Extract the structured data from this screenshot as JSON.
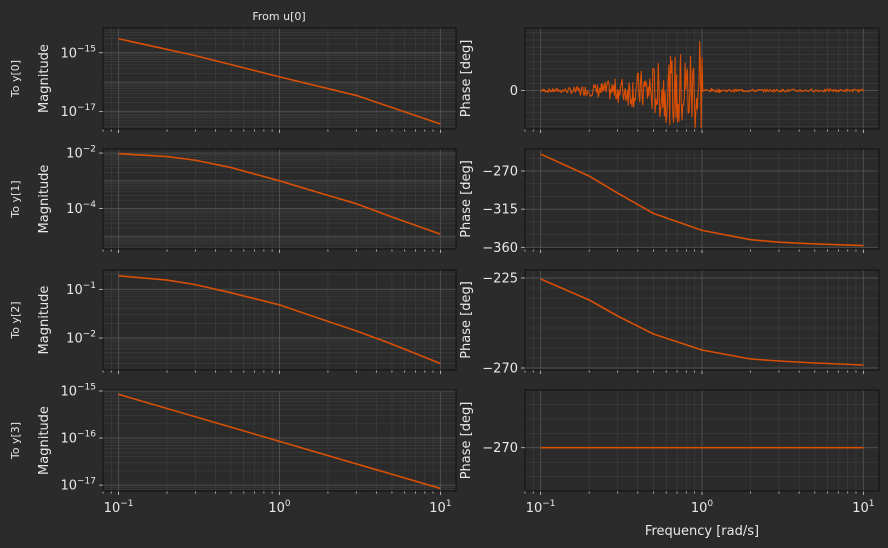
{
  "figure": {
    "column_title": "From u[0]",
    "xlabel": "Frequency [rad/s]",
    "colors": {
      "background": "#2b2b2b",
      "line": "#d84f05",
      "grid": "#555555",
      "text": "#e8e8e8",
      "frame": "#111111"
    }
  },
  "chart_data": [
    {
      "type": "line",
      "id": "mag0",
      "row": 0,
      "col": 0,
      "row_label": "To y[0]",
      "ylabel": "Magnitude",
      "xscale": "log",
      "yscale": "log",
      "xlim": [
        0.08,
        12.5
      ],
      "ylim": [
        2.5e-18,
        7e-15
      ],
      "grid": true,
      "xticks": [
        0.1,
        1,
        10
      ],
      "xticklabels": [
        "",
        "",
        ""
      ],
      "yticks": [
        1e-15,
        1e-17
      ],
      "yticklabels": [
        "10^-15",
        "10^-17"
      ],
      "series": [
        {
          "x": [
            0.1,
            0.3,
            1,
            3,
            10
          ],
          "y": [
            3e-15,
            8e-16,
            1.5e-16,
            3.5e-17,
            3.7e-18
          ]
        }
      ]
    },
    {
      "type": "line",
      "id": "ph0",
      "row": 0,
      "col": 1,
      "ylabel": "Phase [deg]",
      "noisy_region": [
        0.1,
        1.0
      ],
      "noise_level": "high",
      "xscale": "log",
      "yscale": "linear",
      "xlim": [
        0.08,
        12.5
      ],
      "ylim": [
        -80,
        130
      ],
      "grid": true,
      "xticks": [
        0.1,
        1,
        10
      ],
      "xticklabels": [
        "",
        "",
        ""
      ],
      "yticks": [
        0
      ],
      "yticklabels": [
        "0"
      ],
      "series": [
        {
          "x": [
            0.1,
            10
          ],
          "y": [
            0,
            0
          ]
        }
      ]
    },
    {
      "type": "line",
      "id": "mag1",
      "row": 1,
      "col": 0,
      "row_label": "To y[1]",
      "ylabel": "Magnitude",
      "xscale": "log",
      "yscale": "log",
      "xlim": [
        0.08,
        12.5
      ],
      "ylim": [
        3.5e-06,
        0.014
      ],
      "grid": true,
      "xticks": [
        0.1,
        1,
        10
      ],
      "xticklabels": [
        "",
        "",
        ""
      ],
      "yticks": [
        0.01,
        0.0001
      ],
      "yticklabels": [
        "10^-2",
        "10^-4"
      ],
      "series": [
        {
          "x": [
            0.1,
            0.2,
            0.3,
            0.5,
            1,
            2,
            3,
            5,
            10
          ],
          "y": [
            0.0095,
            0.0075,
            0.0055,
            0.003,
            0.001,
            0.0003,
            0.00015,
            5e-05,
            1.2e-05
          ]
        }
      ]
    },
    {
      "type": "line",
      "id": "ph1",
      "row": 1,
      "col": 1,
      "ylabel": "Phase [deg]",
      "xscale": "log",
      "yscale": "linear",
      "xlim": [
        0.08,
        12.5
      ],
      "ylim": [
        -362,
        -244
      ],
      "grid": true,
      "xticks": [
        0.1,
        1,
        10
      ],
      "xticklabels": [
        "",
        "",
        ""
      ],
      "yticks": [
        -270,
        -315,
        -360
      ],
      "yticklabels": [
        "−270",
        "−315",
        "−360"
      ],
      "series": [
        {
          "x": [
            0.1,
            0.2,
            0.3,
            0.5,
            1,
            2,
            3,
            5,
            10
          ],
          "y": [
            -250,
            -276,
            -296,
            -320,
            -340,
            -351,
            -354,
            -356,
            -358
          ]
        }
      ]
    },
    {
      "type": "line",
      "id": "mag2",
      "row": 2,
      "col": 0,
      "row_label": "To y[2]",
      "ylabel": "Magnitude",
      "xscale": "log",
      "yscale": "log",
      "xlim": [
        0.08,
        12.5
      ],
      "ylim": [
        0.0022,
        0.25
      ],
      "grid": true,
      "xticks": [
        0.1,
        1,
        10
      ],
      "xticklabels": [
        "",
        "",
        ""
      ],
      "yticks": [
        0.1,
        0.01
      ],
      "yticklabels": [
        "10^-1",
        "10^-2"
      ],
      "series": [
        {
          "x": [
            0.1,
            0.2,
            0.3,
            0.5,
            1,
            2,
            3,
            5,
            10
          ],
          "y": [
            0.19,
            0.155,
            0.125,
            0.085,
            0.048,
            0.022,
            0.014,
            0.0075,
            0.003
          ]
        }
      ]
    },
    {
      "type": "line",
      "id": "ph2",
      "row": 2,
      "col": 1,
      "ylabel": "Phase [deg]",
      "xscale": "log",
      "yscale": "linear",
      "xlim": [
        0.08,
        12.5
      ],
      "ylim": [
        -271,
        -221
      ],
      "grid": true,
      "xticks": [
        0.1,
        1,
        10
      ],
      "xticklabels": [
        "",
        "",
        ""
      ],
      "yticks": [
        -225,
        -270
      ],
      "yticklabels": [
        "−225",
        "−270"
      ],
      "series": [
        {
          "x": [
            0.1,
            0.2,
            0.3,
            0.5,
            1,
            2,
            3,
            5,
            10
          ],
          "y": [
            -225.5,
            -236,
            -244,
            -253,
            -261,
            -265.5,
            -266.5,
            -267.5,
            -268.5
          ]
        }
      ]
    },
    {
      "type": "line",
      "id": "mag3",
      "row": 3,
      "col": 0,
      "row_label": "To y[3]",
      "ylabel": "Magnitude",
      "xscale": "log",
      "yscale": "log",
      "xlim": [
        0.08,
        12.5
      ],
      "ylim": [
        7.5e-18,
        1.05e-15
      ],
      "grid": true,
      "xticks": [
        0.1,
        1,
        10
      ],
      "xticklabels": [
        "10^-1",
        "10^0",
        "10^1"
      ],
      "yticks": [
        1e-15,
        1e-16,
        1e-17
      ],
      "yticklabels": [
        "10^-15",
        "10^-16",
        "10^-17"
      ],
      "series": [
        {
          "x": [
            0.1,
            10
          ],
          "y": [
            8.5e-16,
            8.5e-18
          ]
        }
      ]
    },
    {
      "type": "line",
      "id": "ph3",
      "row": 3,
      "col": 1,
      "ylabel": "Phase [deg]",
      "xscale": "log",
      "yscale": "linear",
      "xlim": [
        0.08,
        12.5
      ],
      "ylim": [
        -285,
        -250
      ],
      "grid": true,
      "xticks": [
        0.1,
        1,
        10
      ],
      "xticklabels": [
        "10^-1",
        "10^0",
        "10^1"
      ],
      "yticks": [
        -270
      ],
      "yticklabels": [
        "−270"
      ],
      "series": [
        {
          "x": [
            0.1,
            10
          ],
          "y": [
            -270,
            -270
          ]
        }
      ]
    }
  ]
}
